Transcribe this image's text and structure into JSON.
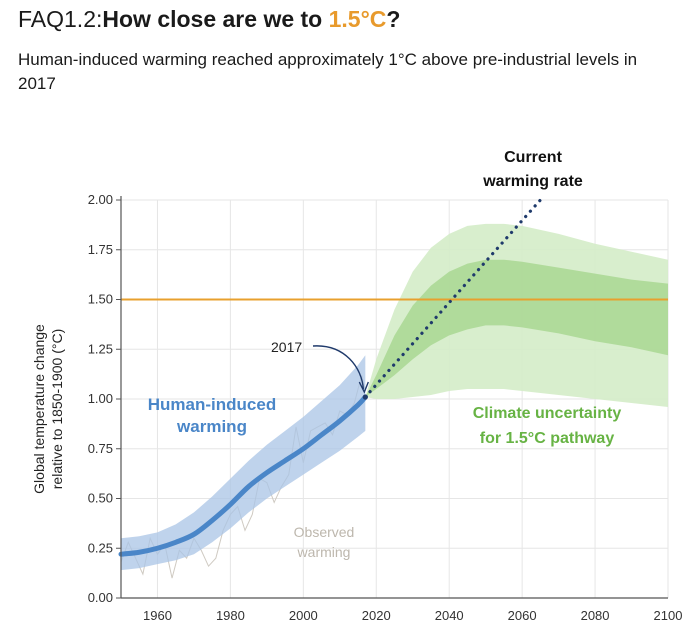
{
  "header": {
    "prefix": "FAQ1.2:",
    "question": "How close are we to ",
    "highlight": "1.5°C",
    "qmark": "?",
    "subtitle": "Human-induced warming reached approximately 1°C above pre-industrial levels in 2017"
  },
  "colors": {
    "threshold": "#e8a02e",
    "human": "#4a86c8",
    "human_band": "#a9c4e6",
    "pathway_outer": "#d4ecc8",
    "pathway_inner": "#a6d68e",
    "pathway_text": "#67b344",
    "dotted": "#1f3a6b",
    "observed": "#cfcac2"
  },
  "chart_data": {
    "type": "line",
    "ylabel": [
      "Global temperature change",
      "relative to 1850-1900 (°C)"
    ],
    "xlim": [
      1950,
      2100
    ],
    "ylim": [
      0,
      2
    ],
    "xticks": [
      1960,
      1980,
      2000,
      2020,
      2040,
      2060,
      2080,
      2100
    ],
    "yticks": [
      "0.00",
      "0.25",
      "0.50",
      "0.75",
      "1.00",
      "1.25",
      "1.50",
      "1.75",
      "2.00"
    ],
    "grid": true,
    "threshold": 1.5,
    "human_induced": {
      "x": [
        1950,
        1955,
        1960,
        1965,
        1970,
        1975,
        1980,
        1985,
        1990,
        1995,
        2000,
        2005,
        2010,
        2015,
        2017
      ],
      "y": [
        0.22,
        0.23,
        0.25,
        0.28,
        0.32,
        0.39,
        0.47,
        0.56,
        0.63,
        0.69,
        0.75,
        0.82,
        0.89,
        0.97,
        1.01
      ],
      "lower": [
        0.14,
        0.15,
        0.17,
        0.19,
        0.22,
        0.28,
        0.35,
        0.43,
        0.5,
        0.56,
        0.62,
        0.68,
        0.74,
        0.81,
        0.84
      ],
      "upper": [
        0.3,
        0.31,
        0.33,
        0.37,
        0.43,
        0.51,
        0.6,
        0.69,
        0.77,
        0.84,
        0.91,
        0.99,
        1.07,
        1.17,
        1.22
      ]
    },
    "current_rate": {
      "x": [
        2017,
        2065
      ],
      "y": [
        1.01,
        2.0
      ]
    },
    "pathway": {
      "x": [
        2017,
        2020,
        2025,
        2030,
        2035,
        2040,
        2045,
        2050,
        2055,
        2060,
        2070,
        2080,
        2090,
        2100
      ],
      "outer_upper": [
        1.01,
        1.2,
        1.45,
        1.64,
        1.76,
        1.83,
        1.87,
        1.88,
        1.88,
        1.87,
        1.83,
        1.78,
        1.74,
        1.7
      ],
      "outer_lower": [
        1.01,
        1.0,
        1.0,
        1.01,
        1.02,
        1.04,
        1.05,
        1.05,
        1.05,
        1.04,
        1.02,
        1.0,
        0.98,
        0.96
      ],
      "inner_upper": [
        1.01,
        1.12,
        1.32,
        1.47,
        1.57,
        1.64,
        1.68,
        1.7,
        1.7,
        1.69,
        1.66,
        1.63,
        1.6,
        1.58
      ],
      "inner_lower": [
        1.01,
        1.05,
        1.12,
        1.2,
        1.27,
        1.32,
        1.35,
        1.37,
        1.37,
        1.36,
        1.33,
        1.29,
        1.26,
        1.22
      ]
    },
    "observed": {
      "x": [
        1950,
        1952,
        1954,
        1956,
        1958,
        1960,
        1962,
        1964,
        1966,
        1968,
        1970,
        1972,
        1974,
        1976,
        1978,
        1980,
        1982,
        1984,
        1986,
        1988,
        1990,
        1992,
        1994,
        1996,
        1998,
        2000,
        2002,
        2004,
        2006,
        2008,
        2010,
        2012,
        2014,
        2016,
        2017
      ],
      "y": [
        0.18,
        0.28,
        0.2,
        0.12,
        0.3,
        0.22,
        0.27,
        0.1,
        0.24,
        0.2,
        0.3,
        0.24,
        0.16,
        0.2,
        0.34,
        0.42,
        0.46,
        0.34,
        0.42,
        0.6,
        0.58,
        0.48,
        0.56,
        0.62,
        0.86,
        0.68,
        0.84,
        0.86,
        0.88,
        0.82,
        0.94,
        0.92,
        0.98,
        1.12,
        1.04
      ]
    },
    "annotations": {
      "year_2017": "2017",
      "human_line1": "Human-induced",
      "human_line2": "warming",
      "current_line1": "Current",
      "current_line2": "warming rate",
      "pathway_line1": "Climate uncertainty",
      "pathway_line2": "for 1.5°C pathway",
      "observed_line1": "Observed",
      "observed_line2": "warming"
    }
  }
}
